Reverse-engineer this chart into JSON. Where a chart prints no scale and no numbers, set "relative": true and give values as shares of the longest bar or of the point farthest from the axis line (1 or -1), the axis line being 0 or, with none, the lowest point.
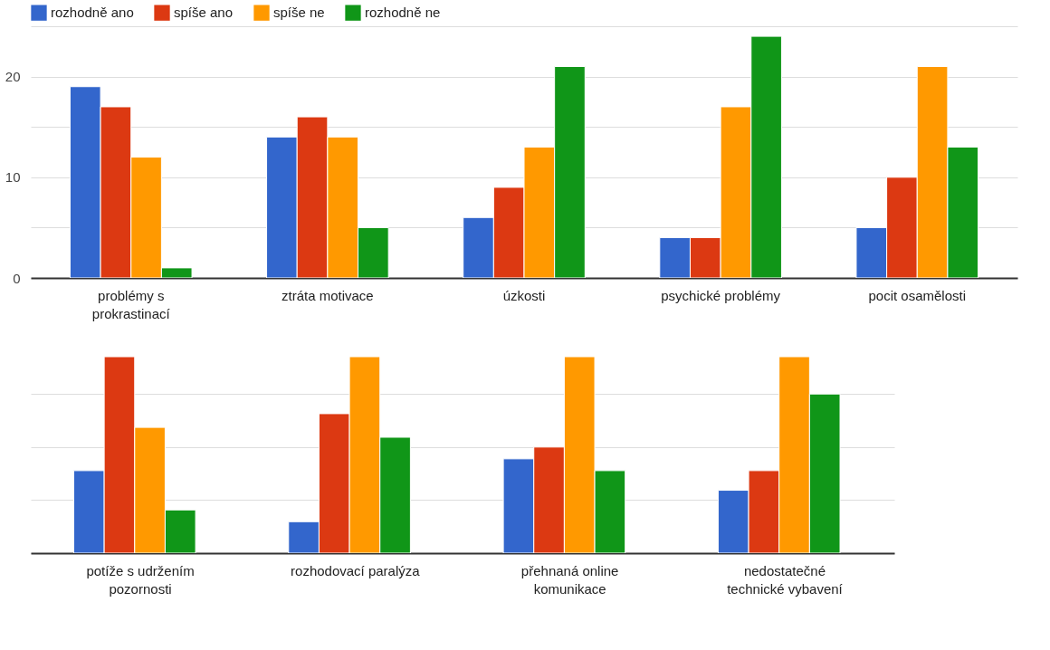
{
  "chart_data": [
    {
      "type": "bar",
      "categories": [
        "problémy s prokrastinací",
        "ztráta motivace",
        "úzkosti",
        "psychické problémy",
        "pocit osamělosti"
      ],
      "series": [
        {
          "name": "rozhodně ano",
          "color": "#3366cc",
          "values": [
            19,
            14,
            6,
            4,
            5
          ]
        },
        {
          "name": "spíše ano",
          "color": "#dc3912",
          "values": [
            17,
            16,
            9,
            4,
            10
          ]
        },
        {
          "name": "spíše ne",
          "color": "#ff9900",
          "values": [
            12,
            14,
            13,
            17,
            21
          ]
        },
        {
          "name": "rozhodně ne",
          "color": "#109618",
          "values": [
            1,
            5,
            21,
            24,
            13
          ]
        }
      ],
      "ylim": [
        0,
        25
      ],
      "yticks": [
        0,
        {
          "value": 5,
          "label": null
        },
        10,
        {
          "value": 15,
          "label": null
        },
        20,
        {
          "value": 25,
          "label": null
        }
      ],
      "grid": "y",
      "legend": "top left"
    },
    {
      "type": "bar",
      "categories": [
        "potíže s udržením pozornosti",
        "rozhodovací paralýza",
        "přehnaná online komunikace",
        "nedostatečné technické vybavení"
      ],
      "series": [
        {
          "color": "#3366cc",
          "values": [
            0.42,
            0.16,
            0.48,
            0.32
          ]
        },
        {
          "color": "#dc3912",
          "values": [
            1,
            0.71,
            0.54,
            0.42
          ]
        },
        {
          "color": "#ff9900",
          "values": [
            0.64,
            1,
            1,
            1
          ]
        },
        {
          "color": "#109618",
          "values": [
            0.22,
            0.59,
            0.42,
            0.81
          ]
        }
      ],
      "relative": true,
      "grid": "y",
      "legend": false
    }
  ]
}
